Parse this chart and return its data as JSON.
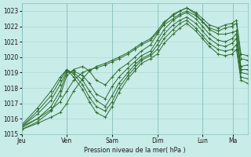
{
  "bg_color": "#c8ece8",
  "grid_color": "#aad4d0",
  "line_color": "#2d6a2d",
  "ylim": [
    1015,
    1023.5
  ],
  "yticks": [
    1015,
    1016,
    1017,
    1018,
    1019,
    1020,
    1021,
    1022,
    1023
  ],
  "day_labels": [
    "Jeu",
    "Ven",
    "Sam",
    "Dim",
    "Lun",
    "Ma"
  ],
  "day_positions": [
    0,
    0.2,
    0.4,
    0.6,
    0.8,
    0.933
  ],
  "xlim": [
    0,
    1.0
  ],
  "series": [
    {
      "points": [
        [
          0.0,
          1015.3
        ],
        [
          0.07,
          1015.8
        ],
        [
          0.13,
          1016.5
        ],
        [
          0.17,
          1017.5
        ],
        [
          0.2,
          1018.8
        ],
        [
          0.23,
          1019.2
        ],
        [
          0.27,
          1019.4
        ],
        [
          0.3,
          1019.1
        ],
        [
          0.33,
          1018.5
        ],
        [
          0.37,
          1018.2
        ],
        [
          0.4,
          1018.7
        ],
        [
          0.43,
          1019.2
        ],
        [
          0.47,
          1019.6
        ],
        [
          0.5,
          1020.0
        ],
        [
          0.53,
          1020.4
        ],
        [
          0.57,
          1020.8
        ],
        [
          0.6,
          1021.5
        ],
        [
          0.63,
          1022.2
        ],
        [
          0.67,
          1022.8
        ],
        [
          0.7,
          1023.0
        ],
        [
          0.73,
          1023.2
        ],
        [
          0.77,
          1022.8
        ],
        [
          0.8,
          1022.3
        ],
        [
          0.83,
          1021.8
        ],
        [
          0.87,
          1021.5
        ],
        [
          0.9,
          1021.5
        ],
        [
          0.93,
          1021.6
        ],
        [
          0.95,
          1021.7
        ],
        [
          0.97,
          1019.4
        ],
        [
          1.0,
          1019.5
        ]
      ]
    },
    {
      "points": [
        [
          0.0,
          1015.4
        ],
        [
          0.07,
          1016.0
        ],
        [
          0.13,
          1016.8
        ],
        [
          0.17,
          1017.8
        ],
        [
          0.2,
          1019.0
        ],
        [
          0.23,
          1019.1
        ],
        [
          0.27,
          1018.8
        ],
        [
          0.3,
          1018.3
        ],
        [
          0.33,
          1017.6
        ],
        [
          0.37,
          1017.3
        ],
        [
          0.4,
          1018.1
        ],
        [
          0.43,
          1018.7
        ],
        [
          0.47,
          1019.3
        ],
        [
          0.5,
          1019.7
        ],
        [
          0.53,
          1020.1
        ],
        [
          0.57,
          1020.4
        ],
        [
          0.6,
          1021.1
        ],
        [
          0.63,
          1021.8
        ],
        [
          0.67,
          1022.4
        ],
        [
          0.7,
          1022.7
        ],
        [
          0.73,
          1022.9
        ],
        [
          0.77,
          1022.5
        ],
        [
          0.8,
          1022.0
        ],
        [
          0.83,
          1021.5
        ],
        [
          0.87,
          1021.1
        ],
        [
          0.9,
          1021.0
        ],
        [
          0.93,
          1021.2
        ],
        [
          0.95,
          1021.5
        ],
        [
          0.97,
          1019.2
        ],
        [
          1.0,
          1019.2
        ]
      ]
    },
    {
      "points": [
        [
          0.0,
          1015.5
        ],
        [
          0.07,
          1016.3
        ],
        [
          0.13,
          1017.2
        ],
        [
          0.17,
          1018.2
        ],
        [
          0.2,
          1019.1
        ],
        [
          0.23,
          1019.0
        ],
        [
          0.27,
          1018.5
        ],
        [
          0.3,
          1017.8
        ],
        [
          0.33,
          1017.2
        ],
        [
          0.37,
          1016.8
        ],
        [
          0.4,
          1017.5
        ],
        [
          0.43,
          1018.3
        ],
        [
          0.47,
          1019.0
        ],
        [
          0.5,
          1019.5
        ],
        [
          0.53,
          1019.9
        ],
        [
          0.57,
          1020.2
        ],
        [
          0.6,
          1020.8
        ],
        [
          0.63,
          1021.5
        ],
        [
          0.67,
          1022.1
        ],
        [
          0.7,
          1022.4
        ],
        [
          0.73,
          1022.6
        ],
        [
          0.77,
          1022.2
        ],
        [
          0.8,
          1021.7
        ],
        [
          0.83,
          1021.2
        ],
        [
          0.87,
          1020.8
        ],
        [
          0.9,
          1020.7
        ],
        [
          0.93,
          1020.9
        ],
        [
          0.95,
          1021.2
        ],
        [
          0.97,
          1019.0
        ],
        [
          1.0,
          1018.9
        ]
      ]
    },
    {
      "points": [
        [
          0.0,
          1015.5
        ],
        [
          0.07,
          1016.5
        ],
        [
          0.13,
          1017.5
        ],
        [
          0.17,
          1018.5
        ],
        [
          0.2,
          1019.2
        ],
        [
          0.23,
          1018.9
        ],
        [
          0.27,
          1018.2
        ],
        [
          0.3,
          1017.4
        ],
        [
          0.33,
          1016.8
        ],
        [
          0.37,
          1016.5
        ],
        [
          0.4,
          1017.1
        ],
        [
          0.43,
          1018.0
        ],
        [
          0.47,
          1018.8
        ],
        [
          0.5,
          1019.3
        ],
        [
          0.53,
          1019.8
        ],
        [
          0.57,
          1020.1
        ],
        [
          0.6,
          1020.5
        ],
        [
          0.63,
          1021.2
        ],
        [
          0.67,
          1021.8
        ],
        [
          0.7,
          1022.2
        ],
        [
          0.73,
          1022.4
        ],
        [
          0.77,
          1021.9
        ],
        [
          0.8,
          1021.4
        ],
        [
          0.83,
          1020.9
        ],
        [
          0.87,
          1020.5
        ],
        [
          0.9,
          1020.4
        ],
        [
          0.93,
          1020.5
        ],
        [
          0.95,
          1020.8
        ],
        [
          0.97,
          1018.7
        ],
        [
          1.0,
          1018.6
        ]
      ]
    },
    {
      "points": [
        [
          0.0,
          1015.6
        ],
        [
          0.07,
          1016.7
        ],
        [
          0.13,
          1017.8
        ],
        [
          0.17,
          1018.7
        ],
        [
          0.2,
          1019.2
        ],
        [
          0.23,
          1018.7
        ],
        [
          0.27,
          1017.9
        ],
        [
          0.3,
          1017.1
        ],
        [
          0.33,
          1016.4
        ],
        [
          0.37,
          1016.1
        ],
        [
          0.4,
          1016.8
        ],
        [
          0.43,
          1017.7
        ],
        [
          0.47,
          1018.6
        ],
        [
          0.5,
          1019.1
        ],
        [
          0.53,
          1019.6
        ],
        [
          0.57,
          1019.9
        ],
        [
          0.6,
          1020.2
        ],
        [
          0.63,
          1020.9
        ],
        [
          0.67,
          1021.5
        ],
        [
          0.7,
          1021.9
        ],
        [
          0.73,
          1022.2
        ],
        [
          0.77,
          1021.7
        ],
        [
          0.8,
          1021.2
        ],
        [
          0.83,
          1020.7
        ],
        [
          0.87,
          1020.2
        ],
        [
          0.9,
          1020.1
        ],
        [
          0.93,
          1020.2
        ],
        [
          0.95,
          1020.5
        ],
        [
          0.97,
          1018.5
        ],
        [
          1.0,
          1018.3
        ]
      ]
    },
    {
      "points": [
        [
          0.0,
          1015.5
        ],
        [
          0.07,
          1016.0
        ],
        [
          0.13,
          1016.6
        ],
        [
          0.17,
          1017.1
        ],
        [
          0.2,
          1017.8
        ],
        [
          0.23,
          1018.5
        ],
        [
          0.27,
          1019.0
        ],
        [
          0.3,
          1019.2
        ],
        [
          0.33,
          1019.3
        ],
        [
          0.37,
          1019.5
        ],
        [
          0.4,
          1019.7
        ],
        [
          0.43,
          1019.9
        ],
        [
          0.47,
          1020.2
        ],
        [
          0.5,
          1020.5
        ],
        [
          0.53,
          1020.8
        ],
        [
          0.57,
          1021.1
        ],
        [
          0.6,
          1021.6
        ],
        [
          0.63,
          1022.1
        ],
        [
          0.67,
          1022.5
        ],
        [
          0.7,
          1022.8
        ],
        [
          0.73,
          1023.0
        ],
        [
          0.77,
          1022.7
        ],
        [
          0.8,
          1022.3
        ],
        [
          0.83,
          1021.9
        ],
        [
          0.87,
          1021.7
        ],
        [
          0.9,
          1021.9
        ],
        [
          0.93,
          1022.0
        ],
        [
          0.95,
          1022.2
        ],
        [
          0.97,
          1019.9
        ],
        [
          1.0,
          1019.8
        ]
      ]
    },
    {
      "points": [
        [
          0.0,
          1015.3
        ],
        [
          0.07,
          1015.7
        ],
        [
          0.13,
          1016.1
        ],
        [
          0.17,
          1016.4
        ],
        [
          0.2,
          1017.0
        ],
        [
          0.23,
          1017.8
        ],
        [
          0.27,
          1018.6
        ],
        [
          0.3,
          1019.1
        ],
        [
          0.33,
          1019.4
        ],
        [
          0.37,
          1019.6
        ],
        [
          0.4,
          1019.8
        ],
        [
          0.43,
          1020.0
        ],
        [
          0.47,
          1020.3
        ],
        [
          0.5,
          1020.6
        ],
        [
          0.53,
          1020.9
        ],
        [
          0.57,
          1021.2
        ],
        [
          0.6,
          1021.7
        ],
        [
          0.63,
          1022.3
        ],
        [
          0.67,
          1022.7
        ],
        [
          0.7,
          1023.0
        ],
        [
          0.73,
          1023.2
        ],
        [
          0.77,
          1022.9
        ],
        [
          0.8,
          1022.5
        ],
        [
          0.83,
          1022.1
        ],
        [
          0.87,
          1021.9
        ],
        [
          0.9,
          1022.1
        ],
        [
          0.93,
          1022.2
        ],
        [
          0.95,
          1022.4
        ],
        [
          0.97,
          1020.2
        ],
        [
          1.0,
          1020.1
        ]
      ]
    }
  ]
}
